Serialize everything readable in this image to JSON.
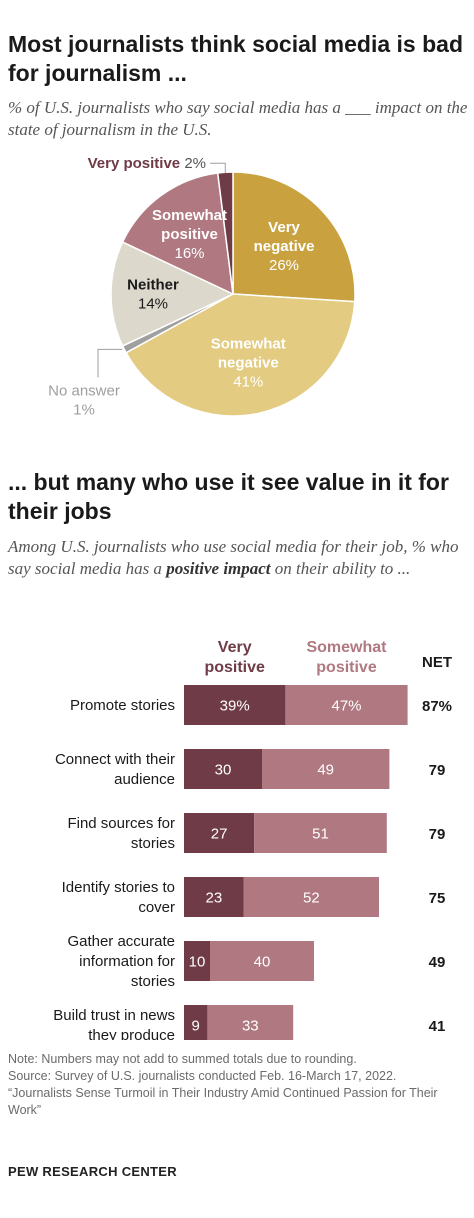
{
  "title1": "Most journalists think social media is bad for journalism ...",
  "subtitle1": "% of U.S. journalists who say social media has a ___ impact on the state of journalism in the U.S.",
  "title2": "... but many who use it see value in it for their jobs",
  "subtitle2_pre": "Among U.S. journalists who use social media for their job, % who say social media has a ",
  "subtitle2_emph": "positive impact",
  "subtitle2_post": " on their ability to ...",
  "chart_data": [
    {
      "type": "pie",
      "slices": [
        {
          "label": "Very negative",
          "value": 26,
          "display": "26%",
          "color": "#c9a23f"
        },
        {
          "label": "Somewhat negative",
          "value": 41,
          "display": "41%",
          "color": "#e3cb82"
        },
        {
          "label": "No answer",
          "value": 1,
          "display": "1%",
          "color": "#9f9f9f"
        },
        {
          "label": "Neither",
          "value": 14,
          "display": "14%",
          "color": "#dcd8cc"
        },
        {
          "label": "Somewhat positive",
          "value": 16,
          "display": "16%",
          "color": "#b07880"
        },
        {
          "label": "Very positive",
          "value": 2,
          "display": "2%",
          "color": "#6e3b46"
        }
      ]
    },
    {
      "type": "bar",
      "stacked": true,
      "orientation": "horizontal",
      "categories": [
        "Promote stories",
        "Connect with their audience",
        "Find sources for stories",
        "Identify stories to cover",
        "Gather accurate information for stories",
        "Build trust in news they produce"
      ],
      "series": [
        {
          "name": "Very positive",
          "values": [
            39,
            30,
            27,
            23,
            10,
            9
          ],
          "labels": [
            "39%",
            "30",
            "27",
            "23",
            "10",
            "9"
          ],
          "color": "#6e3b46"
        },
        {
          "name": "Somewhat positive",
          "values": [
            47,
            49,
            51,
            52,
            40,
            33
          ],
          "labels": [
            "47%",
            "49",
            "51",
            "52",
            "40",
            "33"
          ],
          "color": "#b07880"
        }
      ],
      "net_label": "NET",
      "net": [
        "87%",
        "79",
        "79",
        "75",
        "49",
        "41"
      ]
    }
  ],
  "notes": [
    "Note: Numbers may not add to summed totals due to rounding.",
    "Source: Survey of U.S. journalists conducted Feb. 16-March 17, 2022.",
    "“Journalists Sense Turmoil in Their Industry Amid Continued Passion for Their Work”"
  ],
  "source_org": "PEW RESEARCH CENTER"
}
